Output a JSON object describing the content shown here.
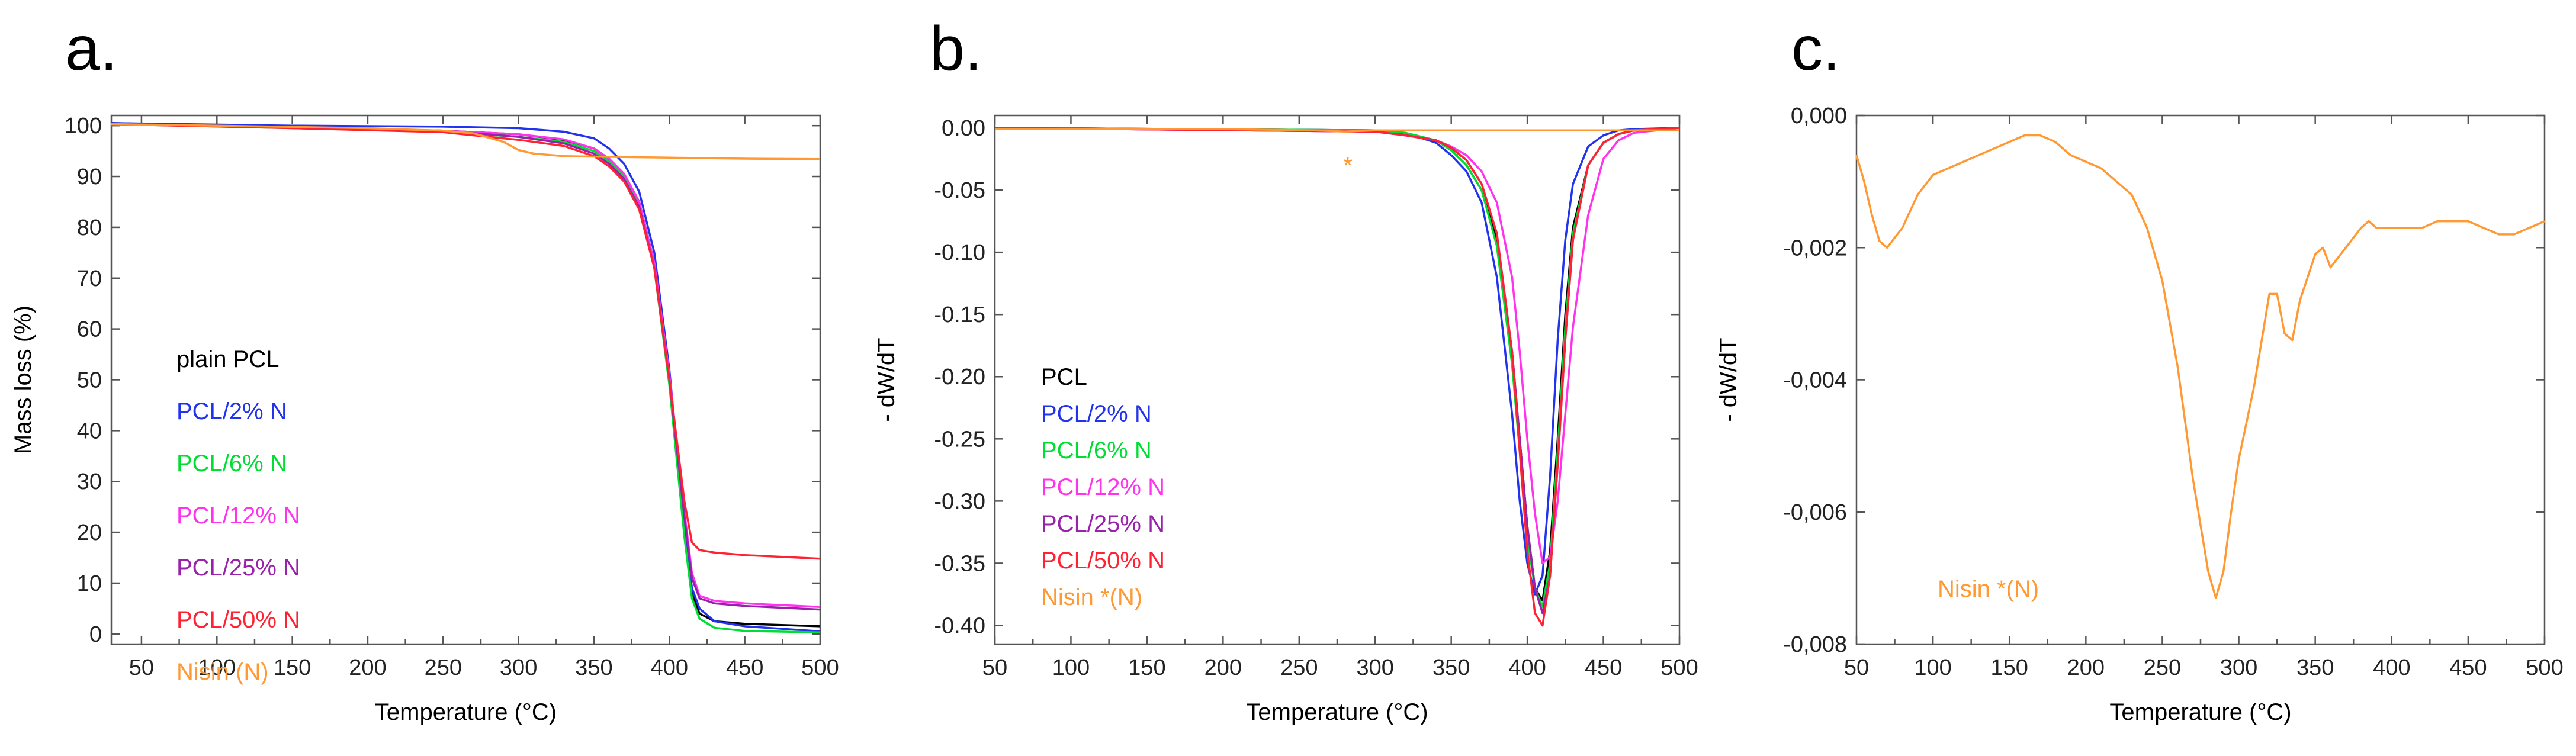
{
  "chart_data": [
    {
      "panel": "a.",
      "type": "line",
      "xlabel": "Temperature (°C)",
      "ylabel": "Mass loss (%)",
      "xlim": [
        30,
        500
      ],
      "ylim": [
        -2,
        102
      ],
      "xticks": [
        50,
        100,
        150,
        200,
        250,
        300,
        350,
        400,
        450,
        500
      ],
      "yticks": [
        0,
        10,
        20,
        30,
        40,
        50,
        60,
        70,
        80,
        90,
        100
      ],
      "legend_position": "left-middle",
      "series": [
        {
          "name": "plain PCL",
          "color": "#000000",
          "x": [
            30,
            150,
            250,
            300,
            330,
            350,
            360,
            370,
            380,
            390,
            400,
            410,
            415,
            420,
            430,
            450,
            500
          ],
          "y": [
            100.5,
            99.7,
            99,
            98.3,
            97.2,
            95.5,
            93.5,
            90.5,
            85,
            73,
            50,
            20,
            8,
            4,
            2.5,
            2,
            1.5
          ]
        },
        {
          "name": "PCL/2% N",
          "color": "#2233ee",
          "x": [
            30,
            150,
            250,
            300,
            330,
            350,
            360,
            370,
            380,
            390,
            400,
            410,
            415,
            420,
            430,
            450,
            500
          ],
          "y": [
            100.5,
            100,
            99.8,
            99.5,
            98.8,
            97.5,
            95.5,
            92.5,
            87,
            75,
            52,
            21,
            9,
            5,
            2.5,
            1.5,
            0.5
          ]
        },
        {
          "name": "PCL/6% N",
          "color": "#00dd33",
          "x": [
            30,
            150,
            250,
            300,
            330,
            350,
            360,
            370,
            380,
            390,
            400,
            410,
            415,
            420,
            430,
            450,
            500
          ],
          "y": [
            100.3,
            99.5,
            98.8,
            97.8,
            96.8,
            95,
            93,
            90,
            84,
            72,
            49,
            19,
            7,
            3,
            1.2,
            0.6,
            0.3
          ]
        },
        {
          "name": "PCL/12% N",
          "color": "#ff33ee",
          "x": [
            30,
            150,
            250,
            300,
            330,
            350,
            360,
            370,
            380,
            390,
            400,
            410,
            415,
            420,
            430,
            450,
            500
          ],
          "y": [
            100.3,
            99.6,
            99,
            98.3,
            97.3,
            95.5,
            93.5,
            90.5,
            85,
            73,
            51,
            24,
            12,
            7.5,
            6.5,
            6,
            5.3
          ]
        },
        {
          "name": "PCL/25% N",
          "color": "#9922aa",
          "x": [
            30,
            150,
            250,
            300,
            330,
            350,
            360,
            370,
            380,
            390,
            400,
            410,
            415,
            420,
            430,
            450,
            500
          ],
          "y": [
            100.3,
            99.6,
            99,
            97.8,
            96.5,
            94.5,
            92.5,
            89.5,
            84,
            72,
            50,
            23,
            11,
            7,
            6,
            5.5,
            4.8
          ]
        },
        {
          "name": "PCL/50% N",
          "color": "#ff2233",
          "x": [
            30,
            150,
            250,
            300,
            330,
            350,
            360,
            370,
            380,
            390,
            400,
            410,
            415,
            420,
            430,
            450,
            500
          ],
          "y": [
            100.3,
            99.5,
            98.7,
            97.2,
            96,
            94,
            92,
            89,
            83.5,
            72,
            50,
            26,
            18,
            16.5,
            16,
            15.5,
            14.8
          ]
        },
        {
          "name": "Nisin (N)",
          "color": "#ff9933",
          "x": [
            30,
            100,
            200,
            250,
            270,
            290,
            300,
            310,
            330,
            350,
            400,
            450,
            500
          ],
          "y": [
            100.3,
            100,
            99.5,
            99,
            98.5,
            96.8,
            95.2,
            94.5,
            94,
            93.9,
            93.7,
            93.5,
            93.4
          ]
        }
      ]
    },
    {
      "panel": "b.",
      "type": "line",
      "xlabel": "Temperature (°C)",
      "ylabel": "- dW/dT",
      "xlim": [
        50,
        500
      ],
      "ylim": [
        -0.415,
        0.01
      ],
      "xticks": [
        50,
        100,
        150,
        200,
        250,
        300,
        350,
        400,
        450,
        500
      ],
      "yticks": [
        0.0,
        -0.05,
        -0.1,
        -0.15,
        -0.2,
        -0.25,
        -0.3,
        -0.35,
        -0.4
      ],
      "ytick_labels": [
        "0.00",
        "-0.05",
        "-0.10",
        "-0.15",
        "-0.20",
        "-0.25",
        "-0.30",
        "-0.35",
        "-0.40"
      ],
      "annotation": {
        "text": "*",
        "x": 282,
        "y": -0.028,
        "color": "#ff9933"
      },
      "legend_position": "left-bottom",
      "series": [
        {
          "name": "PCL",
          "color": "#000000",
          "x": [
            50,
            300,
            320,
            340,
            350,
            360,
            370,
            380,
            390,
            395,
            400,
            405,
            410,
            415,
            420,
            425,
            430,
            440,
            450,
            460,
            470,
            500
          ],
          "y": [
            0,
            -0.002,
            -0.005,
            -0.01,
            -0.018,
            -0.03,
            -0.05,
            -0.09,
            -0.18,
            -0.25,
            -0.32,
            -0.37,
            -0.38,
            -0.34,
            -0.25,
            -0.15,
            -0.08,
            -0.03,
            -0.012,
            -0.005,
            -0.002,
            0
          ]
        },
        {
          "name": "PCL/2% N",
          "color": "#2233ee",
          "x": [
            50,
            300,
            320,
            340,
            350,
            360,
            370,
            380,
            390,
            395,
            400,
            405,
            410,
            415,
            420,
            425,
            430,
            440,
            450,
            460,
            470,
            500
          ],
          "y": [
            0,
            -0.002,
            -0.004,
            -0.012,
            -0.022,
            -0.035,
            -0.06,
            -0.12,
            -0.23,
            -0.3,
            -0.35,
            -0.375,
            -0.36,
            -0.28,
            -0.17,
            -0.09,
            -0.045,
            -0.015,
            -0.006,
            -0.002,
            -0.001,
            0
          ]
        },
        {
          "name": "PCL/6% N",
          "color": "#00dd33",
          "x": [
            50,
            300,
            320,
            340,
            350,
            360,
            370,
            380,
            390,
            395,
            400,
            405,
            410,
            415,
            420,
            425,
            430,
            440,
            450,
            460,
            470,
            500
          ],
          "y": [
            0,
            -0.002,
            -0.004,
            -0.01,
            -0.018,
            -0.03,
            -0.05,
            -0.095,
            -0.19,
            -0.26,
            -0.33,
            -0.37,
            -0.385,
            -0.35,
            -0.26,
            -0.16,
            -0.085,
            -0.03,
            -0.012,
            -0.005,
            -0.002,
            0
          ]
        },
        {
          "name": "PCL/12% N",
          "color": "#ff33ee",
          "x": [
            50,
            300,
            320,
            340,
            350,
            360,
            370,
            380,
            390,
            395,
            400,
            405,
            410,
            415,
            420,
            425,
            430,
            440,
            450,
            460,
            470,
            500
          ],
          "y": [
            0,
            -0.003,
            -0.006,
            -0.01,
            -0.015,
            -0.022,
            -0.035,
            -0.06,
            -0.12,
            -0.18,
            -0.25,
            -0.31,
            -0.35,
            -0.345,
            -0.3,
            -0.23,
            -0.16,
            -0.07,
            -0.025,
            -0.01,
            -0.004,
            0
          ]
        },
        {
          "name": "PCL/25% N",
          "color": "#9922aa",
          "x": [
            50,
            300,
            320,
            340,
            350,
            360,
            370,
            380,
            390,
            395,
            400,
            405,
            410,
            415,
            420,
            425,
            430,
            440,
            450,
            460,
            470,
            500
          ],
          "y": [
            0,
            -0.003,
            -0.006,
            -0.01,
            -0.016,
            -0.026,
            -0.045,
            -0.085,
            -0.18,
            -0.25,
            -0.32,
            -0.37,
            -0.39,
            -0.36,
            -0.27,
            -0.17,
            -0.09,
            -0.03,
            -0.012,
            -0.005,
            -0.002,
            0
          ]
        },
        {
          "name": "PCL/50% N",
          "color": "#ff2233",
          "x": [
            50,
            300,
            320,
            340,
            350,
            360,
            370,
            380,
            390,
            395,
            400,
            405,
            410,
            415,
            420,
            425,
            430,
            440,
            450,
            460,
            470,
            500
          ],
          "y": [
            0,
            -0.003,
            -0.006,
            -0.01,
            -0.016,
            -0.026,
            -0.045,
            -0.085,
            -0.18,
            -0.26,
            -0.34,
            -0.39,
            -0.4,
            -0.36,
            -0.27,
            -0.17,
            -0.09,
            -0.03,
            -0.012,
            -0.005,
            -0.002,
            0
          ]
        },
        {
          "name": "Nisin *(N)",
          "color": "#ff9933",
          "x": [
            50,
            200,
            260,
            280,
            300,
            350,
            400,
            500
          ],
          "y": [
            -0.001,
            -0.001,
            -0.002,
            -0.003,
            -0.002,
            -0.002,
            -0.002,
            -0.002
          ]
        }
      ]
    },
    {
      "panel": "c.",
      "type": "line",
      "xlabel": "Temperature (°C)",
      "ylabel": "- dW/dT",
      "xlim": [
        50,
        500
      ],
      "ylim": [
        -0.008,
        0.0
      ],
      "xticks": [
        50,
        100,
        150,
        200,
        250,
        300,
        350,
        400,
        450,
        500
      ],
      "yticks": [
        0.0,
        -0.002,
        -0.004,
        -0.006,
        -0.008
      ],
      "ytick_labels": [
        "0,000",
        "-0,002",
        "-0,004",
        "-0,006",
        "-0,008"
      ],
      "legend_position": "bottom-left",
      "series": [
        {
          "name": "Nisin *(N)",
          "color": "#ff9933",
          "x": [
            50,
            55,
            60,
            65,
            70,
            80,
            90,
            100,
            120,
            140,
            150,
            160,
            170,
            180,
            190,
            200,
            210,
            220,
            230,
            240,
            250,
            260,
            270,
            280,
            285,
            290,
            295,
            300,
            310,
            320,
            325,
            330,
            335,
            340,
            350,
            355,
            360,
            370,
            380,
            385,
            390,
            400,
            410,
            420,
            430,
            440,
            450,
            460,
            470,
            480,
            490,
            500
          ],
          "y": [
            -0.0006,
            -0.001,
            -0.0015,
            -0.0019,
            -0.002,
            -0.0017,
            -0.0012,
            -0.0009,
            -0.0007,
            -0.0005,
            -0.0004,
            -0.0003,
            -0.0003,
            -0.0004,
            -0.0006,
            -0.0007,
            -0.0008,
            -0.001,
            -0.0012,
            -0.0017,
            -0.0025,
            -0.0038,
            -0.0055,
            -0.0069,
            -0.0073,
            -0.0069,
            -0.006,
            -0.0052,
            -0.0041,
            -0.0027,
            -0.0027,
            -0.0033,
            -0.0034,
            -0.0028,
            -0.0021,
            -0.002,
            -0.0023,
            -0.002,
            -0.0017,
            -0.0016,
            -0.0017,
            -0.0017,
            -0.0017,
            -0.0017,
            -0.0016,
            -0.0016,
            -0.0016,
            -0.0017,
            -0.0018,
            -0.0018,
            -0.0017,
            -0.0016
          ]
        }
      ]
    }
  ]
}
